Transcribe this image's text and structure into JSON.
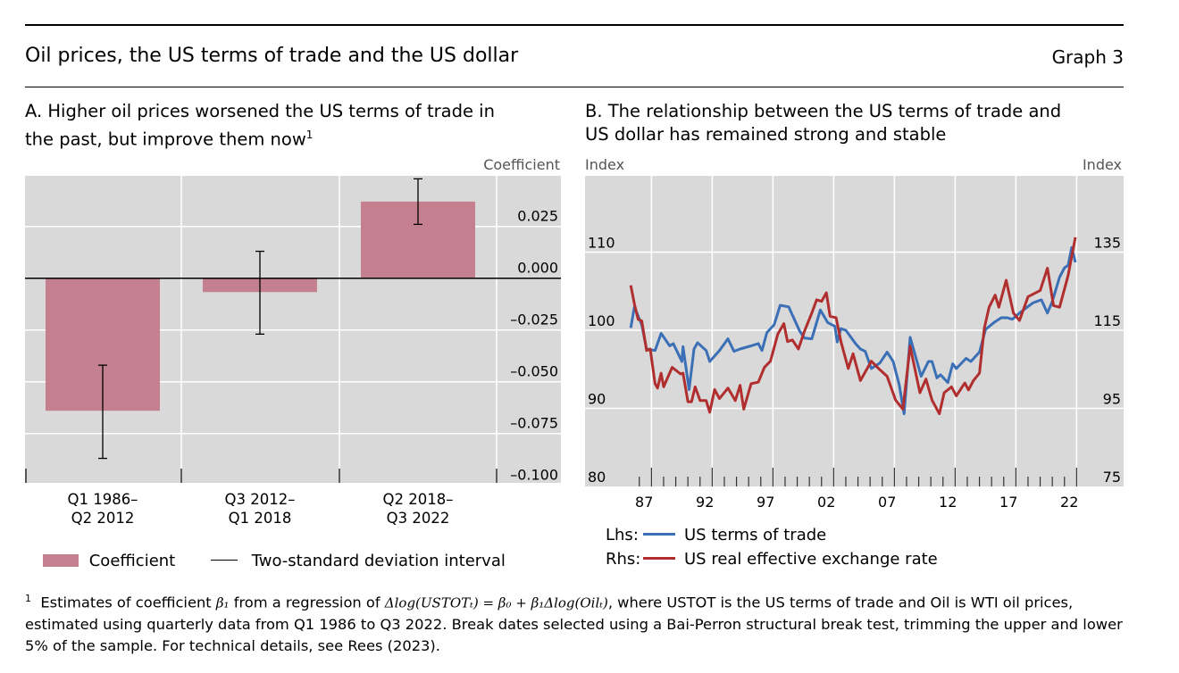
{
  "header": {
    "title": "Oil prices, the US terms of trade and the US dollar",
    "graph_number": "Graph 3"
  },
  "panel_a": {
    "subtitle_line1": "A. Higher oil prices worsened the US terms of trade in",
    "subtitle_line2": "the past, but improve them now",
    "footnote_mark": "1",
    "unit": "Coefficient",
    "legend": {
      "bar": "Coefficient",
      "line": "Two-standard deviation interval"
    }
  },
  "panel_b": {
    "subtitle_line1": "B. The relationship between the US terms of trade and",
    "subtitle_line2": "US dollar has remained strong and stable",
    "unit_left": "Index",
    "unit_right": "Index",
    "legend": {
      "lhs_prefix": "Lhs:",
      "rhs_prefix": "Rhs:",
      "lhs_label": "US terms of trade",
      "rhs_label": "US real effective exchange rate"
    }
  },
  "colors": {
    "bar": "#c4808f",
    "plot_bg": "#d9d9d9",
    "tot": "#3b6fb6",
    "reer": "#b12e2e"
  },
  "footnote": {
    "mark": "1",
    "pre": "Estimates of coefficient ",
    "beta": "β₁",
    "mid": " from a regression of ",
    "formula": "Δlog(USTOTₜ) = β₀ + β₁Δlog(Oilₜ)",
    "post": ", where USTOT is the US terms of trade and Oil is WTI oil prices, estimated using quarterly data from Q1 1986 to Q3 2022. Break dates selected using a Bai-Perron structural break test, trimming the upper and lower 5% of the sample. For technical details, see Rees (2023)."
  },
  "chart_data": [
    {
      "type": "bar",
      "title": "A. Higher oil prices worsened the US terms of trade in the past, but improve them now",
      "categories": [
        "Q1 1986–\nQ2 2012",
        "Q3 2012–\nQ1 2018",
        "Q2 2018–\nQ3 2022"
      ],
      "category_lines": [
        [
          "Q1 1986–",
          "Q2 2012"
        ],
        [
          "Q3 2012–",
          "Q1 2018"
        ],
        [
          "Q2 2018–",
          "Q3 2022"
        ]
      ],
      "values": [
        -0.064,
        -0.0067,
        0.037
      ],
      "ci_low": [
        -0.087,
        -0.027,
        0.026
      ],
      "ci_high": [
        -0.042,
        0.013,
        0.048
      ],
      "ylabel": "Coefficient",
      "ylim": [
        -0.1,
        0.05
      ],
      "yticks": [
        0.025,
        0.0,
        -0.025,
        -0.05,
        -0.075,
        -0.1
      ],
      "ytick_labels": [
        "0.025",
        "0.000",
        "–0.025",
        "–0.050",
        "–0.075",
        "–0.100"
      ],
      "grid": true,
      "legend_position": "bottom"
    },
    {
      "type": "line",
      "title": "B. The relationship between the US terms of trade and US dollar has remained strong and stable",
      "ylabel_left": "Index",
      "ylabel_right": "Index",
      "ylim_left": [
        80,
        120
      ],
      "ylim_right": [
        75,
        155
      ],
      "yticks_left": [
        "80",
        "90",
        "100",
        "110"
      ],
      "yticks_right": [
        "75",
        "95",
        "115",
        "135"
      ],
      "xticks": [
        "87",
        "92",
        "97",
        "02",
        "07",
        "12",
        "17",
        "22"
      ],
      "xtick_years": [
        1987,
        1992,
        1997,
        2002,
        2007,
        2012,
        2017,
        2022
      ],
      "grid": true,
      "legend_position": "bottom-left",
      "series": [
        {
          "name": "US terms of trade",
          "axis": "left",
          "x": [
            1985.9,
            1986.2,
            1986.8,
            1987.2,
            1987.9,
            1988.4,
            1989.1,
            1989.4,
            1990.1,
            1990.2,
            1990.7,
            1991.1,
            1991.4,
            1992.1,
            1992.4,
            1993.2,
            1993.9,
            1994.4,
            1994.9,
            1995.8,
            1996.4,
            1996.7,
            1997.1,
            1997.7,
            1998.2,
            1998.9,
            1999.8,
            2000.2,
            2000.8,
            2001.5,
            2002.1,
            2002.7,
            2002.9,
            2003.2,
            2003.6,
            2004.4,
            2004.8,
            2005.2,
            2005.7,
            2006.4,
            2007.0,
            2007.5,
            2008.0,
            2008.4,
            2008.9,
            2009.8,
            2010.4,
            2010.7,
            2011.1,
            2011.4,
            2012.0,
            2012.4,
            2012.7,
            2013.5,
            2013.9,
            2014.6,
            2015.1,
            2015.8,
            2016.4,
            2016.9,
            2017.3,
            2017.9,
            2018.4,
            2019.0,
            2019.7,
            2020.2,
            2020.6,
            2021.2,
            2021.6,
            2021.9,
            2022.2,
            2022.5
          ],
          "y": [
            100.3,
            103,
            100.7,
            97.6,
            97.4,
            99.6,
            98,
            98.3,
            96,
            97.9,
            92.4,
            97.6,
            98.4,
            97.4,
            96,
            97.4,
            98.9,
            97.3,
            97.6,
            98,
            98.3,
            97.4,
            99.7,
            100.7,
            103.2,
            103,
            99.9,
            99,
            98.9,
            102.6,
            101,
            100.5,
            98.5,
            100.2,
            100,
            98.3,
            97.6,
            97.3,
            95.1,
            95.8,
            97.2,
            96,
            93,
            89.3,
            99.1,
            94.1,
            96,
            96,
            93.9,
            94.3,
            93.3,
            95.7,
            95.1,
            96.4,
            96,
            97.2,
            100.1,
            101,
            101.6,
            101.6,
            101.4,
            102.2,
            102.8,
            103.5,
            103.9,
            102.2,
            103.7,
            106.8,
            108,
            108.3,
            110.6,
            108.7
          ]
        },
        {
          "name": "US real effective exchange rate",
          "axis": "right",
          "x": [
            1985.9,
            1986.2,
            1986.5,
            1986.8,
            1987.2,
            1987.5,
            1987.9,
            1988.1,
            1988.4,
            1988.6,
            1989.3,
            1990.0,
            1990.2,
            1990.6,
            1990.9,
            1991.2,
            1991.6,
            1992.1,
            1992.4,
            1992.8,
            1993.2,
            1993.9,
            1994.5,
            1994.9,
            1995.2,
            1995.8,
            1996.4,
            1996.9,
            1997.4,
            1998.0,
            1998.5,
            1998.8,
            1999.2,
            1999.7,
            2000.2,
            2000.8,
            2001.2,
            2001.6,
            2002.0,
            2002.3,
            2002.8,
            2003.2,
            2003.8,
            2004.2,
            2004.8,
            2005.7,
            2006.3,
            2007.0,
            2007.7,
            2008.3,
            2008.9,
            2009.7,
            2010.2,
            2010.7,
            2011.3,
            2011.7,
            2012.3,
            2012.7,
            2013.4,
            2013.7,
            2014.1,
            2014.6,
            2015.0,
            2015.4,
            2015.9,
            2016.2,
            2016.8,
            2017.4,
            2017.9,
            2018.6,
            2019.6,
            2020.2,
            2020.7,
            2021.2,
            2021.9,
            2022.5
          ],
          "y": [
            126.5,
            121.7,
            117.8,
            117.4,
            109.8,
            110.2,
            101.3,
            100.2,
            104,
            100.5,
            105.5,
            103.8,
            104,
            96.7,
            96.7,
            100.5,
            97,
            97,
            94,
            99.8,
            97.5,
            100.2,
            97,
            100.9,
            94.8,
            101.3,
            101.7,
            105.5,
            107.1,
            114,
            116.7,
            112.1,
            112.5,
            110.2,
            114.8,
            119.4,
            122.8,
            122.4,
            124.6,
            118.6,
            118.2,
            112.1,
            105.2,
            109,
            102.1,
            107.1,
            105.2,
            103.2,
            97.1,
            94.8,
            110.9,
            99,
            102.5,
            97.1,
            93.6,
            99,
            100.5,
            98.2,
            101.5,
            99.7,
            102.1,
            104,
            115.5,
            120.9,
            124,
            120.9,
            127.8,
            119.4,
            117.5,
            123.6,
            125.2,
            130.9,
            121.3,
            120.9,
            129,
            138.8
          ]
        }
      ]
    }
  ]
}
